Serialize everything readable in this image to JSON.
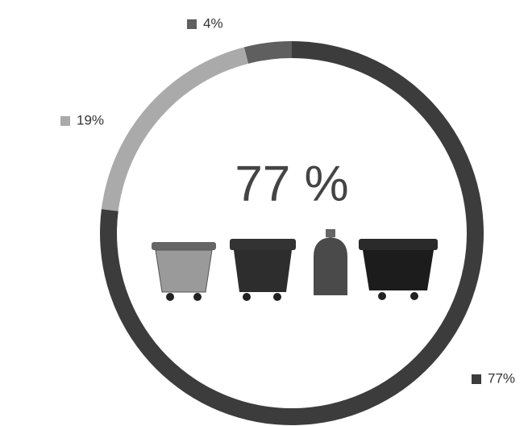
{
  "chart_data": {
    "type": "donut",
    "center_label": "77 %",
    "categories": [
      null,
      null,
      null
    ],
    "values": [
      77,
      19,
      4
    ],
    "value_labels": [
      "77%",
      "19%",
      "4%"
    ],
    "colors": [
      "#3c3c3c",
      "#aaaaaa",
      "#5f5f5f"
    ]
  }
}
